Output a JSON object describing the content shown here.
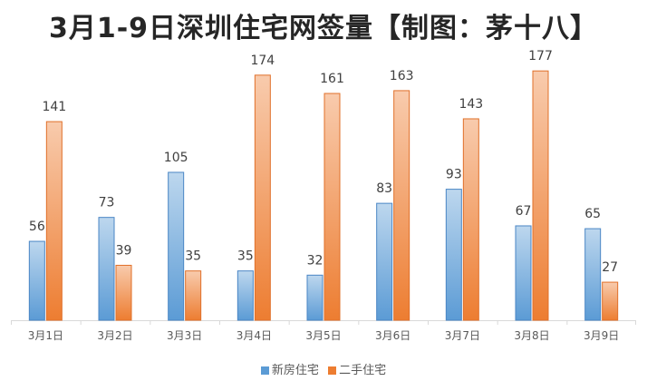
{
  "chart_data": {
    "type": "bar",
    "title": "3月1-9日深圳住宅网签量【制图：茅十八】",
    "categories": [
      "3月1日",
      "3月2日",
      "3月3日",
      "3月4日",
      "3月5日",
      "3月6日",
      "3月7日",
      "3月8日",
      "3月9日"
    ],
    "series": [
      {
        "name": "新房住宅",
        "values": [
          56,
          73,
          105,
          35,
          32,
          83,
          93,
          67,
          65
        ],
        "color": "#5b9bd5"
      },
      {
        "name": "二手住宅",
        "values": [
          141,
          39,
          35,
          174,
          161,
          163,
          143,
          177,
          27
        ],
        "color": "#ed7d31"
      }
    ],
    "ylim": [
      0,
      190
    ],
    "grid": false,
    "data_labels": true,
    "legend_position": "bottom"
  }
}
